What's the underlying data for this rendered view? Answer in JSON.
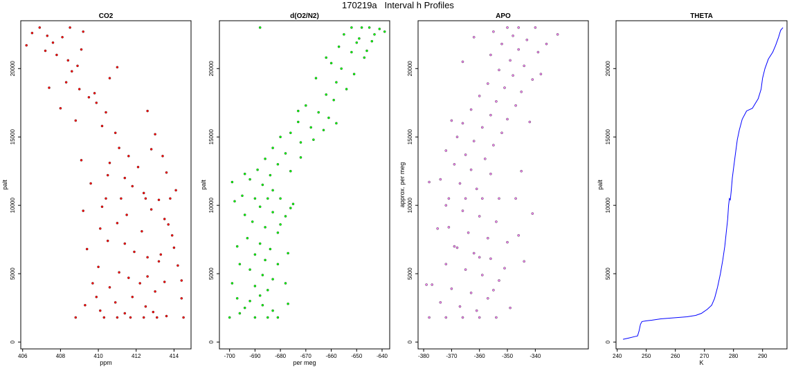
{
  "figure_title": "170219a   Interval h Profiles",
  "chart_data": [
    {
      "type": "scatter",
      "title": "CO2",
      "xlabel": "ppm",
      "ylabel": "palt",
      "xlim": [
        405.9,
        414.9
      ],
      "ylim": [
        -500,
        23500
      ],
      "xticks": [
        406,
        408,
        410,
        412,
        414
      ],
      "yticks": [
        0,
        5000,
        10000,
        15000,
        20000
      ],
      "color": "#ff0000",
      "points": [
        [
          406.2,
          21700
        ],
        [
          406.5,
          22600
        ],
        [
          406.9,
          23000
        ],
        [
          407.3,
          22400
        ],
        [
          407.6,
          21900
        ],
        [
          407.2,
          21300
        ],
        [
          407.8,
          21000
        ],
        [
          408.1,
          22300
        ],
        [
          408.4,
          20600
        ],
        [
          408.9,
          20200
        ],
        [
          408.6,
          19800
        ],
        [
          409.1,
          21400
        ],
        [
          408.3,
          19000
        ],
        [
          409.0,
          18500
        ],
        [
          409.5,
          17900
        ],
        [
          407.4,
          18600
        ],
        [
          408.0,
          17100
        ],
        [
          408.8,
          16200
        ],
        [
          409.9,
          17500
        ],
        [
          410.4,
          16800
        ],
        [
          410.2,
          15800
        ],
        [
          410.9,
          15300
        ],
        [
          411.1,
          14200
        ],
        [
          411.6,
          13600
        ],
        [
          410.6,
          13100
        ],
        [
          409.1,
          13300
        ],
        [
          412.1,
          12800
        ],
        [
          411.4,
          12000
        ],
        [
          411.8,
          11400
        ],
        [
          412.4,
          10900
        ],
        [
          410.4,
          10500
        ],
        [
          411.2,
          10500
        ],
        [
          412.5,
          10500
        ],
        [
          413.2,
          10400
        ],
        [
          413.8,
          10500
        ],
        [
          410.2,
          9900
        ],
        [
          411.5,
          9300
        ],
        [
          412.8,
          9700
        ],
        [
          413.5,
          9000
        ],
        [
          410.1,
          8300
        ],
        [
          411.0,
          8700
        ],
        [
          412.3,
          8100
        ],
        [
          413.9,
          7800
        ],
        [
          411.4,
          7200
        ],
        [
          411.9,
          6600
        ],
        [
          412.6,
          6200
        ],
        [
          413.2,
          5900
        ],
        [
          414.2,
          5600
        ],
        [
          411.1,
          5100
        ],
        [
          411.6,
          4700
        ],
        [
          412.2,
          4300
        ],
        [
          410.6,
          4000
        ],
        [
          413.0,
          3700
        ],
        [
          411.8,
          3300
        ],
        [
          410.9,
          2900
        ],
        [
          412.5,
          2600
        ],
        [
          414.4,
          3200
        ],
        [
          410.1,
          2300
        ],
        [
          411.4,
          2100
        ],
        [
          412.9,
          2200
        ],
        [
          413.6,
          1900
        ],
        [
          410.3,
          1800
        ],
        [
          411.0,
          1800
        ],
        [
          411.7,
          1800
        ],
        [
          412.4,
          1800
        ],
        [
          413.1,
          1800
        ],
        [
          408.8,
          1800
        ],
        [
          414.5,
          1800
        ],
        [
          408.5,
          23000
        ],
        [
          409.2,
          22700
        ],
        [
          410.6,
          19300
        ],
        [
          411.0,
          20100
        ],
        [
          409.8,
          18200
        ],
        [
          412.6,
          16900
        ],
        [
          413.0,
          15200
        ],
        [
          412.8,
          14100
        ],
        [
          413.4,
          13600
        ],
        [
          410.5,
          12200
        ],
        [
          413.6,
          12400
        ],
        [
          409.6,
          11600
        ],
        [
          414.1,
          11100
        ],
        [
          409.2,
          9600
        ],
        [
          413.7,
          8600
        ],
        [
          410.5,
          7400
        ],
        [
          414.0,
          6900
        ],
        [
          409.4,
          6800
        ],
        [
          413.3,
          6400
        ],
        [
          410.0,
          5500
        ],
        [
          414.4,
          4500
        ],
        [
          409.7,
          4300
        ],
        [
          413.5,
          4400
        ],
        [
          409.9,
          3300
        ],
        [
          412.6,
          4800
        ],
        [
          409.3,
          2700
        ]
      ]
    },
    {
      "type": "scatter",
      "title": "d(O2/N2)",
      "xlabel": "per meg",
      "ylabel": "palt",
      "xlim": [
        -704,
        -637
      ],
      "ylim": [
        -500,
        23500
      ],
      "xticks": [
        -700,
        -690,
        -680,
        -670,
        -660,
        -650,
        -640
      ],
      "yticks": [
        0,
        5000,
        10000,
        15000,
        20000
      ],
      "color": "#00ff00",
      "points": [
        [
          -688,
          23000
        ],
        [
          -652,
          23000
        ],
        [
          -648,
          23000
        ],
        [
          -645,
          23000
        ],
        [
          -641,
          22900
        ],
        [
          -655,
          22500
        ],
        [
          -649,
          22200
        ],
        [
          -644,
          22000
        ],
        [
          -657,
          21600
        ],
        [
          -652,
          21200
        ],
        [
          -647,
          20800
        ],
        [
          -660,
          20400
        ],
        [
          -656,
          20000
        ],
        [
          -651,
          19600
        ],
        [
          -666,
          19300
        ],
        [
          -658,
          19000
        ],
        [
          -654,
          18500
        ],
        [
          -662,
          18100
        ],
        [
          -659,
          17700
        ],
        [
          -670,
          17300
        ],
        [
          -665,
          16800
        ],
        [
          -661,
          16400
        ],
        [
          -673,
          16100
        ],
        [
          -668,
          15700
        ],
        [
          -676,
          15300
        ],
        [
          -680,
          15000
        ],
        [
          -672,
          14600
        ],
        [
          -683,
          14200
        ],
        [
          -678,
          13800
        ],
        [
          -686,
          13400
        ],
        [
          -681,
          13000
        ],
        [
          -689,
          12600
        ],
        [
          -684,
          12200
        ],
        [
          -692,
          11900
        ],
        [
          -687,
          11500
        ],
        [
          -683,
          11100
        ],
        [
          -695,
          10700
        ],
        [
          -690,
          10500
        ],
        [
          -685,
          10500
        ],
        [
          -680,
          10500
        ],
        [
          -698,
          10300
        ],
        [
          -688,
          9900
        ],
        [
          -683,
          9500
        ],
        [
          -678,
          9200
        ],
        [
          -691,
          8800
        ],
        [
          -686,
          8400
        ],
        [
          -681,
          8000
        ],
        [
          -693,
          7600
        ],
        [
          -688,
          7200
        ],
        [
          -684,
          6800
        ],
        [
          -690,
          6400
        ],
        [
          -686,
          6000
        ],
        [
          -681,
          5700
        ],
        [
          -692,
          5300
        ],
        [
          -687,
          4900
        ],
        [
          -683,
          4600
        ],
        [
          -699,
          4300
        ],
        [
          -690,
          4100
        ],
        [
          -685,
          3800
        ],
        [
          -688,
          3400
        ],
        [
          -692,
          3000
        ],
        [
          -687,
          2700
        ],
        [
          -683,
          2300
        ],
        [
          -696,
          2100
        ],
        [
          -690,
          1800
        ],
        [
          -685,
          1800
        ],
        [
          -681,
          1800
        ],
        [
          -700,
          1800
        ],
        [
          -694,
          2500
        ],
        [
          -699,
          11700
        ],
        [
          -694,
          12300
        ],
        [
          -676,
          12500
        ],
        [
          -672,
          13500
        ],
        [
          -667,
          14800
        ],
        [
          -663,
          15500
        ],
        [
          -673,
          16900
        ],
        [
          -650,
          21900
        ],
        [
          -646,
          21300
        ],
        [
          -643,
          22500
        ],
        [
          -639,
          22700
        ],
        [
          -662,
          20800
        ],
        [
          -658,
          16000
        ],
        [
          -676,
          9800
        ],
        [
          -694,
          9300
        ],
        [
          -697,
          7000
        ],
        [
          -677,
          6500
        ],
        [
          -696,
          5700
        ],
        [
          -678,
          4300
        ],
        [
          -697,
          3200
        ],
        [
          -677,
          2800
        ],
        [
          -680,
          8600
        ],
        [
          -675,
          10100
        ]
      ]
    },
    {
      "type": "scatter",
      "title": "APO",
      "xlabel": "",
      "ylabel": "approx. per meg",
      "xlim": [
        -382,
        -321
      ],
      "ylim": [
        -500,
        23500
      ],
      "xticks": [
        -380,
        -370,
        -360,
        -350,
        -340
      ],
      "yticks": [
        0,
        5000,
        10000,
        15000,
        20000
      ],
      "color": "#ee82ee",
      "points": [
        [
          -350,
          23000
        ],
        [
          -346,
          23000
        ],
        [
          -340,
          23000
        ],
        [
          -355,
          22700
        ],
        [
          -348,
          22400
        ],
        [
          -343,
          22100
        ],
        [
          -352,
          21800
        ],
        [
          -346,
          21400
        ],
        [
          -339,
          21200
        ],
        [
          -356,
          21000
        ],
        [
          -349,
          20600
        ],
        [
          -344,
          20200
        ],
        [
          -353,
          19900
        ],
        [
          -348,
          19500
        ],
        [
          -341,
          19200
        ],
        [
          -357,
          18900
        ],
        [
          -351,
          18600
        ],
        [
          -345,
          18300
        ],
        [
          -360,
          18000
        ],
        [
          -354,
          17600
        ],
        [
          -347,
          17300
        ],
        [
          -363,
          17000
        ],
        [
          -356,
          16600
        ],
        [
          -350,
          16300
        ],
        [
          -366,
          16000
        ],
        [
          -359,
          15700
        ],
        [
          -352,
          15300
        ],
        [
          -368,
          15000
        ],
        [
          -362,
          14700
        ],
        [
          -355,
          14400
        ],
        [
          -372,
          14000
        ],
        [
          -365,
          13700
        ],
        [
          -358,
          13400
        ],
        [
          -369,
          13000
        ],
        [
          -363,
          12600
        ],
        [
          -356,
          12300
        ],
        [
          -374,
          11900
        ],
        [
          -367,
          11600
        ],
        [
          -361,
          11200
        ],
        [
          -378,
          11700
        ],
        [
          -371,
          10500
        ],
        [
          -365,
          10500
        ],
        [
          -359,
          10500
        ],
        [
          -353,
          10500
        ],
        [
          -347,
          10500
        ],
        [
          -372,
          10000
        ],
        [
          -366,
          9600
        ],
        [
          -360,
          9200
        ],
        [
          -354,
          8800
        ],
        [
          -371,
          8400
        ],
        [
          -364,
          8000
        ],
        [
          -357,
          7600
        ],
        [
          -350,
          7300
        ],
        [
          -368,
          6900
        ],
        [
          -362,
          6500
        ],
        [
          -356,
          6100
        ],
        [
          -372,
          5700
        ],
        [
          -365,
          5300
        ],
        [
          -359,
          4900
        ],
        [
          -353,
          4500
        ],
        [
          -377,
          4200
        ],
        [
          -370,
          3900
        ],
        [
          -363,
          3600
        ],
        [
          -357,
          3200
        ],
        [
          -374,
          2900
        ],
        [
          -367,
          2600
        ],
        [
          -361,
          2300
        ],
        [
          -378,
          1800
        ],
        [
          -372,
          1800
        ],
        [
          -366,
          1800
        ],
        [
          -360,
          1800
        ],
        [
          -354,
          1800
        ],
        [
          -379,
          4200
        ],
        [
          -344,
          5900
        ],
        [
          -341,
          9400
        ],
        [
          -336,
          21800
        ],
        [
          -332,
          22500
        ],
        [
          -338,
          19600
        ],
        [
          -342,
          16100
        ],
        [
          -345,
          12500
        ],
        [
          -346,
          7800
        ],
        [
          -351,
          5400
        ],
        [
          -355,
          3800
        ],
        [
          -349,
          2500
        ],
        [
          -360,
          6200
        ],
        [
          -366,
          20500
        ],
        [
          -362,
          22300
        ],
        [
          -370,
          16200
        ],
        [
          -375,
          8300
        ],
        [
          -369,
          7000
        ]
      ]
    },
    {
      "type": "line",
      "title": "THETA",
      "xlabel": "K",
      "ylabel": "palt",
      "xlim": [
        239.6,
        298.4
      ],
      "ylim": [
        -500,
        23500
      ],
      "xticks": [
        240,
        250,
        260,
        270,
        280,
        290
      ],
      "yticks": [
        0,
        5000,
        10000,
        15000,
        20000
      ],
      "color": "#0000ff",
      "points": [
        [
          242.0,
          200
        ],
        [
          244.0,
          300
        ],
        [
          246.0,
          400
        ],
        [
          247.0,
          450
        ],
        [
          247.5,
          800
        ],
        [
          248.0,
          1300
        ],
        [
          248.5,
          1500
        ],
        [
          250.0,
          1550
        ],
        [
          252.0,
          1600
        ],
        [
          255.0,
          1700
        ],
        [
          258.0,
          1750
        ],
        [
          261.0,
          1800
        ],
        [
          264.0,
          1850
        ],
        [
          267.0,
          1950
        ],
        [
          269.0,
          2100
        ],
        [
          271.0,
          2400
        ],
        [
          272.5,
          2700
        ],
        [
          273.5,
          3200
        ],
        [
          274.5,
          4000
        ],
        [
          275.5,
          5000
        ],
        [
          276.3,
          6000
        ],
        [
          277.0,
          7000
        ],
        [
          277.5,
          8000
        ],
        [
          278.0,
          9000
        ],
        [
          278.3,
          10000
        ],
        [
          278.6,
          10500
        ],
        [
          278.9,
          10400
        ],
        [
          279.2,
          11000
        ],
        [
          279.6,
          12000
        ],
        [
          280.2,
          13000
        ],
        [
          280.8,
          14000
        ],
        [
          281.3,
          14800
        ],
        [
          282.0,
          15500
        ],
        [
          283.0,
          16300
        ],
        [
          284.5,
          16900
        ],
        [
          286.5,
          17100
        ],
        [
          288.5,
          17800
        ],
        [
          289.5,
          18500
        ],
        [
          290.0,
          19300
        ],
        [
          290.8,
          20000
        ],
        [
          292.0,
          20700
        ],
        [
          293.5,
          21200
        ],
        [
          294.5,
          21700
        ],
        [
          295.5,
          22300
        ],
        [
          296.2,
          22800
        ],
        [
          297.0,
          23000
        ]
      ]
    }
  ]
}
